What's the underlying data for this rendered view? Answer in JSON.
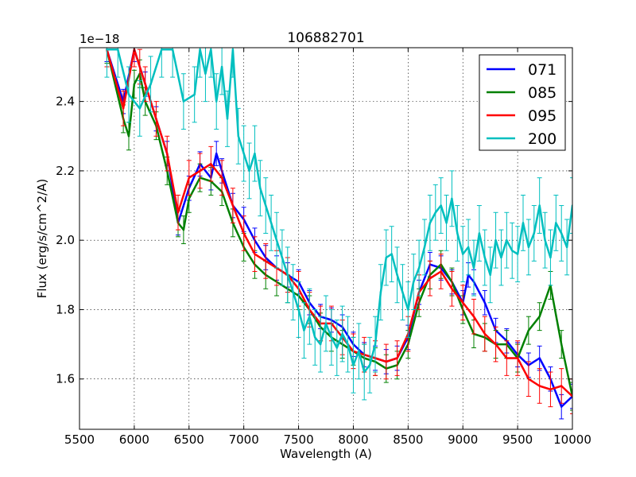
{
  "chart_data": {
    "type": "line",
    "title": "106882701",
    "xlabel": "Wavelength (A)",
    "ylabel": "Flux (erg/s/cm^2/A)",
    "offset_text": "1e−18",
    "xlim": [
      5500,
      10000
    ],
    "ylim": [
      1.455,
      2.555
    ],
    "x_ticks": [
      5500,
      6000,
      6500,
      7000,
      7500,
      8000,
      8500,
      9000,
      9500,
      10000
    ],
    "x_tick_labels": [
      "5500",
      "6000",
      "6500",
      "7000",
      "7500",
      "8000",
      "8500",
      "9000",
      "9500",
      "10000"
    ],
    "y_ticks": [
      1.6,
      1.8,
      2.0,
      2.2,
      2.4
    ],
    "y_tick_labels": [
      "1.6",
      "1.8",
      "2.0",
      "2.2",
      "2.4"
    ],
    "grid": true,
    "legend_position": "top-right",
    "series": [
      {
        "name": "071",
        "color": "#0000ff",
        "err": 0.035,
        "x": [
          5750,
          5900,
          6000,
          6100,
          6200,
          6300,
          6400,
          6500,
          6600,
          6700,
          6750,
          6800,
          6900,
          7000,
          7100,
          7200,
          7300,
          7400,
          7500,
          7600,
          7700,
          7800,
          7900,
          8000,
          8100,
          8200,
          8300,
          8400,
          8500,
          8600,
          8700,
          8800,
          8900,
          9000,
          9050,
          9100,
          9200,
          9300,
          9400,
          9500,
          9600,
          9700,
          9800,
          9900,
          10000
        ],
        "values": [
          2.55,
          2.4,
          2.55,
          2.45,
          2.35,
          2.25,
          2.05,
          2.15,
          2.22,
          2.18,
          2.25,
          2.2,
          2.1,
          2.06,
          2.0,
          1.95,
          1.92,
          1.9,
          1.88,
          1.82,
          1.78,
          1.77,
          1.75,
          1.7,
          1.67,
          1.66,
          1.65,
          1.66,
          1.72,
          1.85,
          1.93,
          1.92,
          1.88,
          1.82,
          1.9,
          1.88,
          1.82,
          1.74,
          1.71,
          1.67,
          1.64,
          1.66,
          1.6,
          1.52,
          1.55
        ]
      },
      {
        "name": "085",
        "color": "#008000",
        "err": 0.04,
        "x": [
          5750,
          5900,
          5950,
          6000,
          6050,
          6100,
          6200,
          6300,
          6400,
          6450,
          6500,
          6600,
          6700,
          6800,
          6900,
          7000,
          7100,
          7200,
          7300,
          7400,
          7500,
          7600,
          7700,
          7800,
          7900,
          8000,
          8100,
          8200,
          8300,
          8400,
          8500,
          8600,
          8700,
          8800,
          8900,
          9000,
          9100,
          9200,
          9300,
          9400,
          9500,
          9600,
          9700,
          9800,
          9900,
          10000
        ],
        "values": [
          2.55,
          2.35,
          2.3,
          2.45,
          2.48,
          2.4,
          2.33,
          2.2,
          2.05,
          2.03,
          2.12,
          2.18,
          2.17,
          2.14,
          2.05,
          1.98,
          1.93,
          1.9,
          1.88,
          1.86,
          1.84,
          1.8,
          1.75,
          1.72,
          1.7,
          1.68,
          1.66,
          1.65,
          1.63,
          1.64,
          1.7,
          1.82,
          1.9,
          1.93,
          1.88,
          1.8,
          1.73,
          1.72,
          1.7,
          1.7,
          1.66,
          1.74,
          1.78,
          1.87,
          1.7,
          1.55
        ]
      },
      {
        "name": "095",
        "color": "#ff0000",
        "err": 0.05,
        "x": [
          5750,
          5900,
          6000,
          6050,
          6100,
          6200,
          6300,
          6400,
          6500,
          6600,
          6700,
          6800,
          6900,
          7000,
          7100,
          7200,
          7300,
          7400,
          7500,
          7600,
          7700,
          7800,
          7900,
          8000,
          8100,
          8200,
          8300,
          8400,
          8500,
          8600,
          8700,
          8800,
          8900,
          9000,
          9100,
          9200,
          9300,
          9400,
          9500,
          9600,
          9700,
          9800,
          9900,
          10000
        ],
        "values": [
          2.55,
          2.38,
          2.55,
          2.5,
          2.45,
          2.35,
          2.25,
          2.08,
          2.18,
          2.2,
          2.22,
          2.18,
          2.1,
          2.02,
          1.96,
          1.94,
          1.92,
          1.9,
          1.86,
          1.8,
          1.76,
          1.76,
          1.72,
          1.68,
          1.67,
          1.66,
          1.65,
          1.66,
          1.73,
          1.85,
          1.89,
          1.91,
          1.86,
          1.82,
          1.78,
          1.73,
          1.7,
          1.66,
          1.66,
          1.6,
          1.58,
          1.57,
          1.58,
          1.55
        ]
      },
      {
        "name": "200",
        "color": "#00bfbf",
        "err": 0.08,
        "x": [
          5750,
          5850,
          5950,
          6050,
          6150,
          6250,
          6350,
          6450,
          6550,
          6600,
          6650,
          6700,
          6750,
          6800,
          6850,
          6900,
          6950,
          7000,
          7050,
          7100,
          7150,
          7200,
          7250,
          7300,
          7350,
          7400,
          7450,
          7500,
          7550,
          7600,
          7650,
          7700,
          7750,
          7800,
          7850,
          7900,
          7950,
          8000,
          8050,
          8100,
          8150,
          8200,
          8250,
          8300,
          8350,
          8400,
          8450,
          8500,
          8550,
          8600,
          8650,
          8700,
          8750,
          8800,
          8850,
          8900,
          8950,
          9000,
          9050,
          9100,
          9150,
          9200,
          9250,
          9300,
          9350,
          9400,
          9450,
          9500,
          9550,
          9600,
          9650,
          9700,
          9750,
          9800,
          9850,
          9900,
          9950,
          10000
        ],
        "values": [
          2.55,
          2.55,
          2.42,
          2.38,
          2.45,
          2.55,
          2.55,
          2.4,
          2.42,
          2.55,
          2.48,
          2.55,
          2.4,
          2.5,
          2.35,
          2.55,
          2.3,
          2.25,
          2.2,
          2.25,
          2.15,
          2.1,
          2.05,
          2.0,
          1.95,
          1.9,
          1.85,
          1.8,
          1.74,
          1.78,
          1.72,
          1.7,
          1.76,
          1.72,
          1.69,
          1.73,
          1.7,
          1.64,
          1.68,
          1.62,
          1.64,
          1.7,
          1.85,
          1.95,
          1.96,
          1.9,
          1.85,
          1.8,
          1.88,
          1.92,
          1.98,
          2.05,
          2.08,
          2.1,
          2.05,
          2.12,
          2.02,
          1.96,
          1.98,
          1.92,
          2.02,
          1.95,
          1.9,
          2.0,
          1.95,
          2.0,
          1.97,
          1.96,
          2.05,
          1.98,
          2.02,
          2.1,
          2.0,
          1.95,
          2.05,
          2.02,
          1.98,
          2.1
        ]
      }
    ]
  }
}
